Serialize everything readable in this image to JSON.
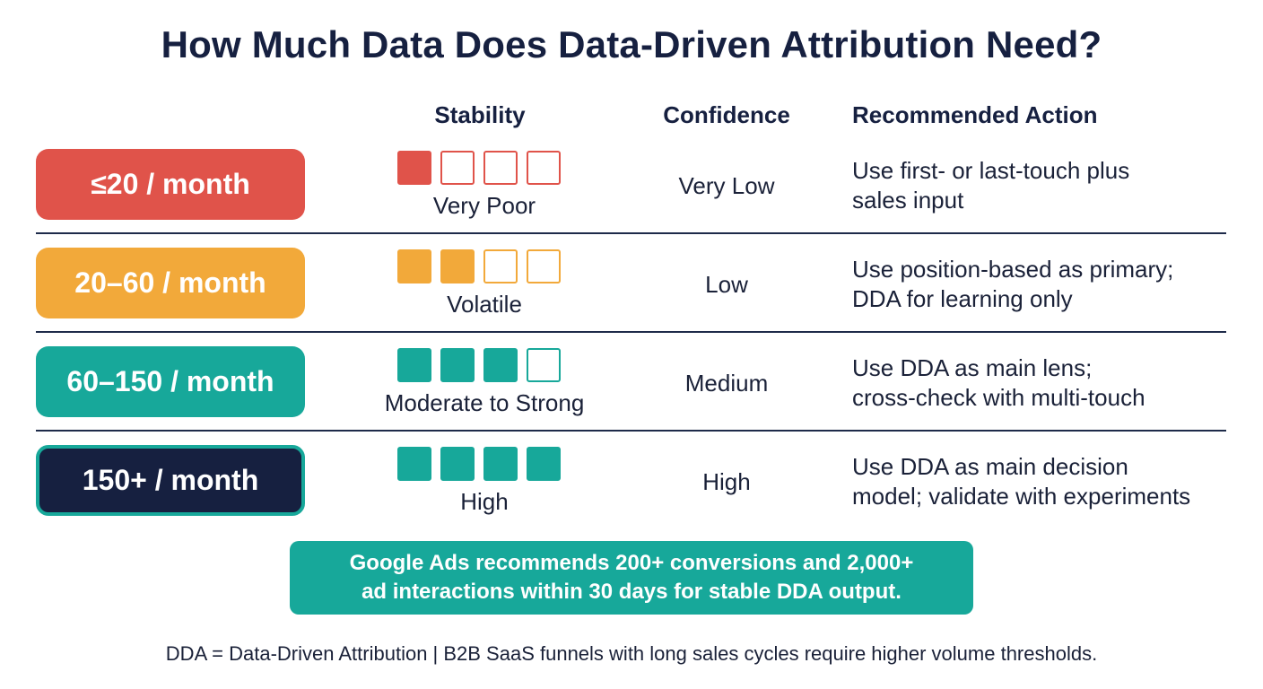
{
  "title": "How Much Data Does Data-Driven Attribution Need?",
  "headers": {
    "stability": "Stability",
    "confidence": "Confidence",
    "action": "Recommended Action"
  },
  "rows": [
    {
      "volume": "≤20 / month",
      "color": "#e0534a",
      "stability_level": 1,
      "stability_max": 4,
      "stability_label": "Very Poor",
      "confidence": "Very Low",
      "action_line1": "Use first- or last-touch plus",
      "action_line2": "sales input"
    },
    {
      "volume": "20–60 / month",
      "color": "#f2a93a",
      "stability_level": 2,
      "stability_max": 4,
      "stability_label": "Volatile",
      "confidence": "Low",
      "action_line1": "Use position-based as primary;",
      "action_line2": "DDA for learning only"
    },
    {
      "volume": "60–150 / month",
      "color": "#17a89a",
      "stability_level": 3,
      "stability_max": 4,
      "stability_label": "Moderate to Strong",
      "confidence": "Medium",
      "action_line1": "Use DDA as main lens;",
      "action_line2": "cross-check with multi-touch"
    },
    {
      "volume": "150+ / month",
      "color": "#162040",
      "stability_level": 4,
      "stability_max": 4,
      "stability_label": "High",
      "confidence": "High",
      "action_line1": "Use DDA as main decision",
      "action_line2": "model; validate with experiments"
    }
  ],
  "note": {
    "line1": "Google Ads recommends 200+ conversions and 2,000+",
    "line2": "ad interactions within 30 days for stable DDA output."
  },
  "footer": "DDA = Data-Driven Attribution | B2B SaaS funnels with long sales cycles require higher volume thresholds."
}
